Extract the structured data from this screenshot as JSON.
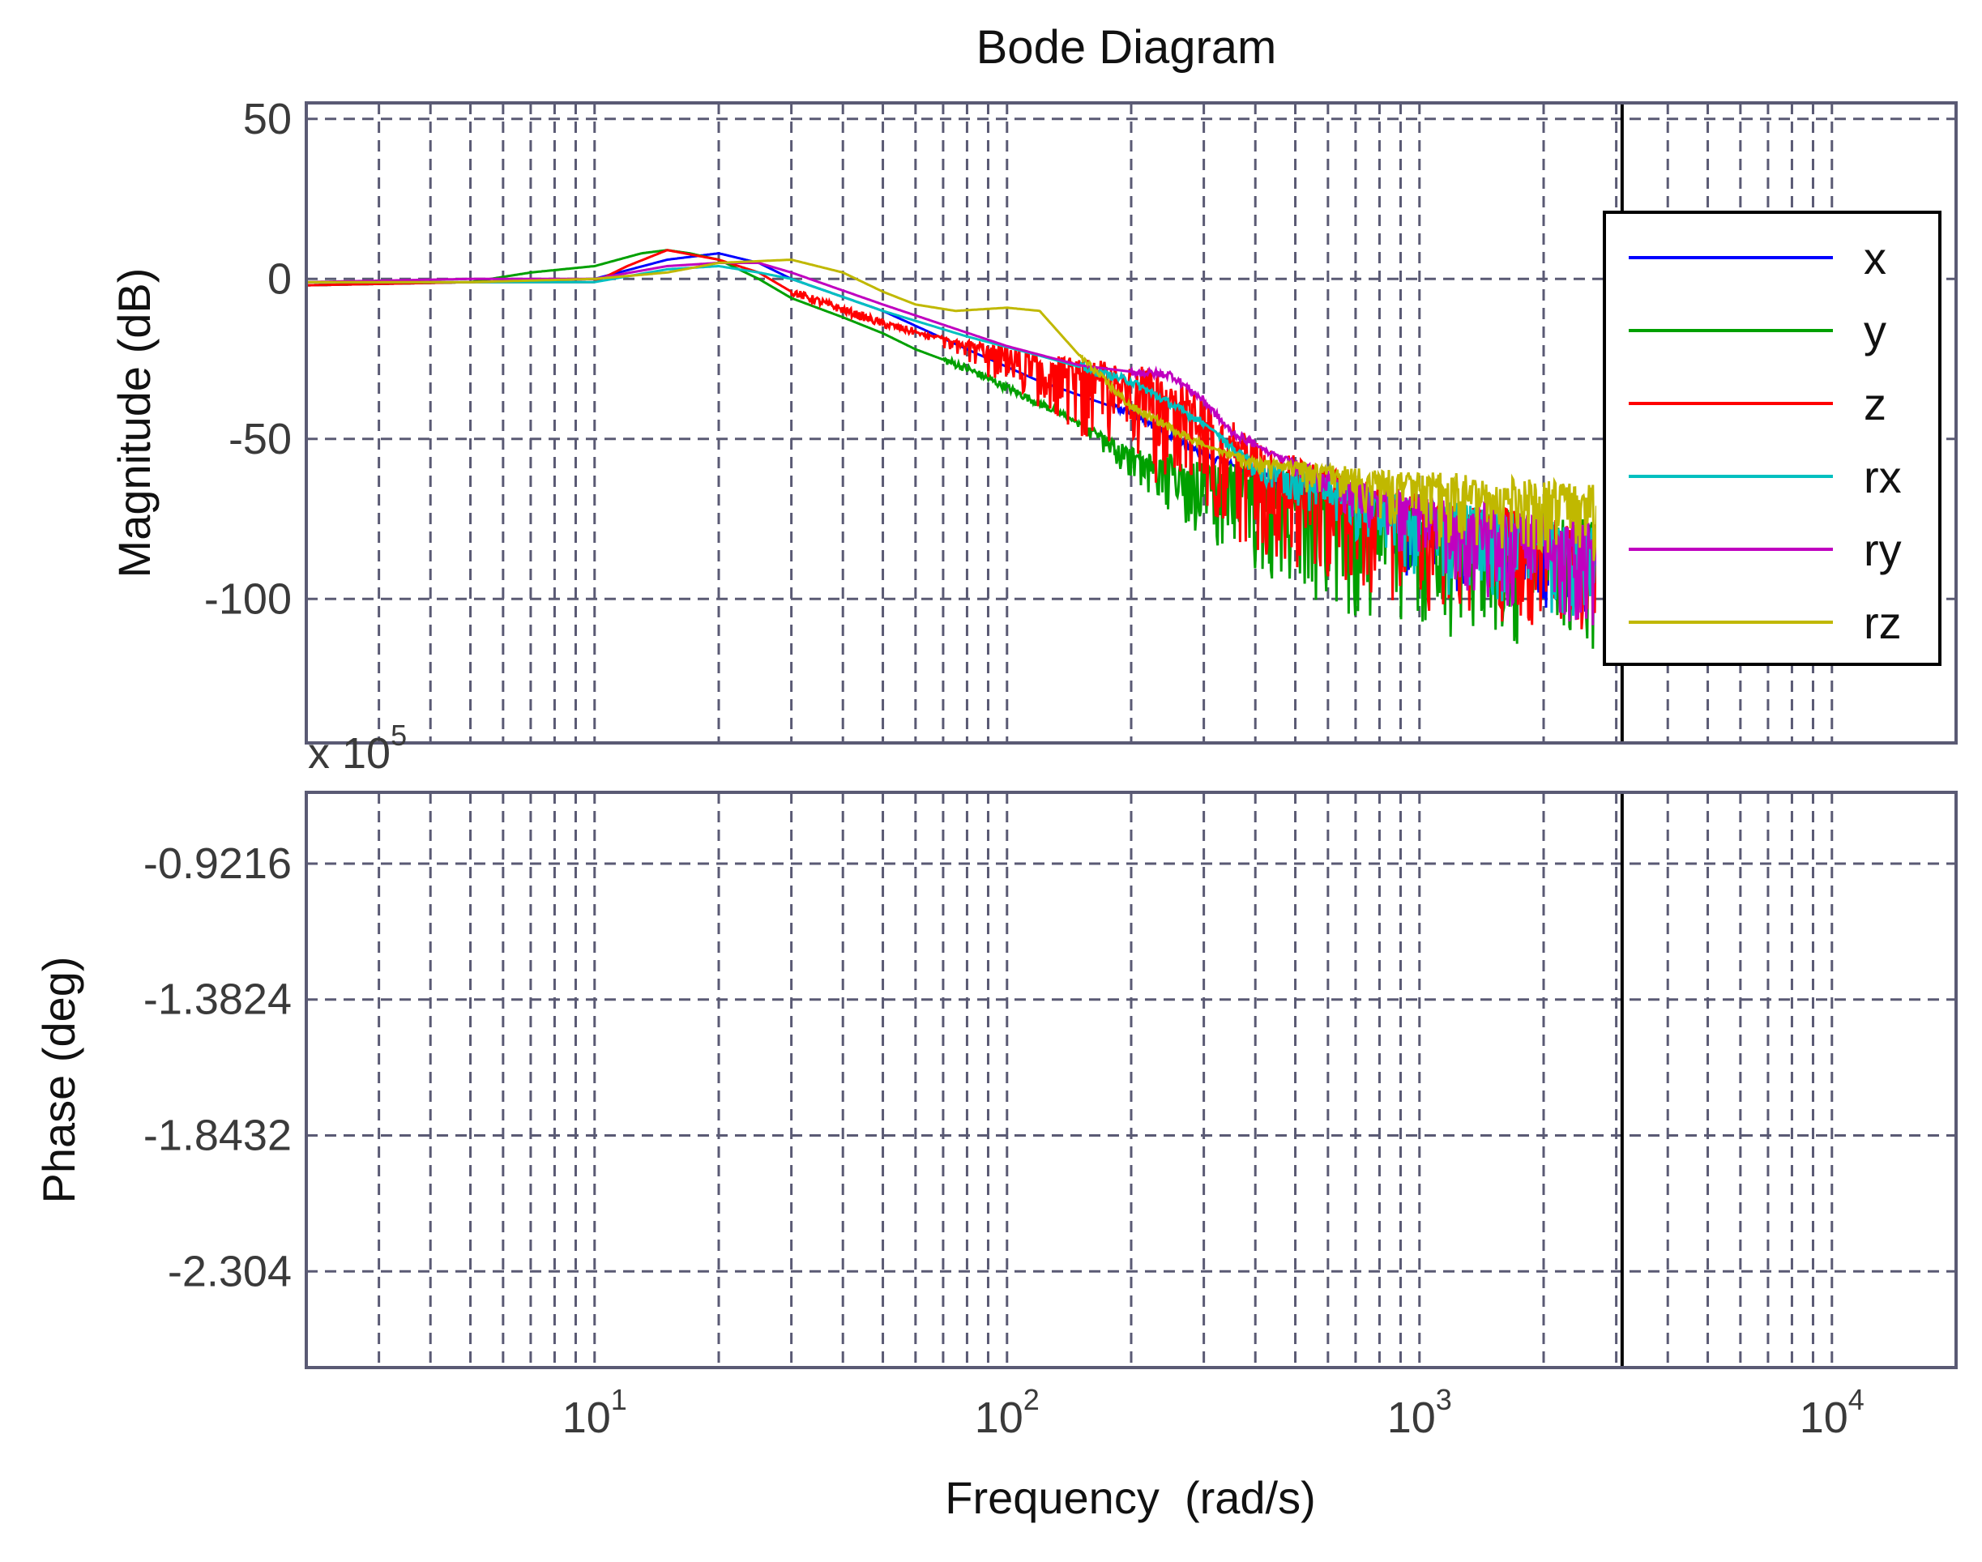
{
  "chart_data": {
    "type": "line",
    "title": "Bode Diagram",
    "xlabel": "Frequency  (rad/s)",
    "x_scale": "log",
    "xlim": [
      2,
      20000
    ],
    "x_ticks": [
      {
        "value": 10,
        "base": "10",
        "exp": "1"
      },
      {
        "value": 100,
        "base": "10",
        "exp": "2"
      },
      {
        "value": 1000,
        "base": "10",
        "exp": "3"
      },
      {
        "value": 10000,
        "base": "10",
        "exp": "4"
      }
    ],
    "vertical_marker": 3100,
    "grid": true,
    "legend": {
      "location": "right",
      "entries": [
        {
          "name": "x",
          "color": "#0000ff"
        },
        {
          "name": "y",
          "color": "#00a000"
        },
        {
          "name": "z",
          "color": "#ff0000"
        },
        {
          "name": "rx",
          "color": "#00c0c0"
        },
        {
          "name": "ry",
          "color": "#c000c0"
        },
        {
          "name": "rz",
          "color": "#c0b800"
        }
      ]
    },
    "magnitude": {
      "ylabel": "Magnitude (dB)",
      "ylim": [
        -145,
        55
      ],
      "y_ticks": [
        "50",
        "0",
        "-50",
        "-100"
      ],
      "y_tick_values": [
        50,
        0,
        -50,
        -100
      ],
      "series": [
        {
          "name": "x",
          "color": "#0000ff",
          "points": [
            [
              2,
              -2
            ],
            [
              5,
              -1
            ],
            [
              10,
              0
            ],
            [
              15,
              6
            ],
            [
              20,
              8
            ],
            [
              25,
              5
            ],
            [
              30,
              0
            ],
            [
              50,
              -10
            ],
            [
              80,
              -22
            ],
            [
              120,
              -32
            ],
            [
              200,
              -42
            ],
            [
              300,
              -55
            ],
            [
              500,
              -65
            ],
            [
              1000,
              -80
            ],
            [
              3000,
              -88
            ]
          ],
          "noise_from": 350,
          "noise_amp": 16
        },
        {
          "name": "y",
          "color": "#00a000",
          "points": [
            [
              2,
              -2
            ],
            [
              5,
              -1
            ],
            [
              7,
              2
            ],
            [
              10,
              4
            ],
            [
              13,
              8
            ],
            [
              15,
              9
            ],
            [
              17,
              8
            ],
            [
              20,
              6
            ],
            [
              25,
              0
            ],
            [
              30,
              -6
            ],
            [
              40,
              -12
            ],
            [
              50,
              -17
            ],
            [
              60,
              -22
            ],
            [
              80,
              -28
            ],
            [
              100,
              -34
            ],
            [
              150,
              -45
            ],
            [
              200,
              -55
            ],
            [
              300,
              -62
            ],
            [
              500,
              -68
            ],
            [
              1000,
              -78
            ],
            [
              3000,
              -85
            ]
          ],
          "noise_from": 140,
          "noise_amp": 26
        },
        {
          "name": "z",
          "color": "#ff0000",
          "points": [
            [
              2,
              -2
            ],
            [
              5,
              -1
            ],
            [
              10,
              -1
            ],
            [
              12,
              4
            ],
            [
              15,
              9
            ],
            [
              20,
              6
            ],
            [
              25,
              2
            ],
            [
              30,
              -4
            ],
            [
              50,
              -14
            ],
            [
              100,
              -24
            ],
            [
              150,
              -30
            ],
            [
              200,
              -33
            ],
            [
              250,
              -38
            ],
            [
              300,
              -45
            ],
            [
              400,
              -58
            ],
            [
              700,
              -70
            ],
            [
              1000,
              -75
            ],
            [
              3000,
              -85
            ]
          ],
          "noise_from": 60,
          "noise_amp": 22
        },
        {
          "name": "rx",
          "color": "#00c0c0",
          "points": [
            [
              2,
              -1
            ],
            [
              5,
              -1
            ],
            [
              10,
              -1
            ],
            [
              15,
              3
            ],
            [
              20,
              4
            ],
            [
              25,
              2
            ],
            [
              30,
              0
            ],
            [
              50,
              -10
            ],
            [
              80,
              -18
            ],
            [
              120,
              -24
            ],
            [
              200,
              -32
            ],
            [
              300,
              -45
            ],
            [
              400,
              -58
            ],
            [
              700,
              -68
            ],
            [
              1000,
              -74
            ],
            [
              3000,
              -85
            ]
          ],
          "noise_from": 300,
          "noise_amp": 18
        },
        {
          "name": "ry",
          "color": "#c000c0",
          "points": [
            [
              2,
              -1
            ],
            [
              5,
              0
            ],
            [
              10,
              0
            ],
            [
              15,
              4
            ],
            [
              20,
              5
            ],
            [
              25,
              5
            ],
            [
              30,
              2
            ],
            [
              50,
              -8
            ],
            [
              100,
              -21
            ],
            [
              150,
              -27
            ],
            [
              200,
              -29
            ],
            [
              250,
              -30
            ],
            [
              300,
              -38
            ],
            [
              350,
              -48
            ],
            [
              450,
              -55
            ],
            [
              700,
              -66
            ],
            [
              1000,
              -72
            ],
            [
              3000,
              -85
            ]
          ],
          "noise_from": 400,
          "noise_amp": 20
        },
        {
          "name": "rz",
          "color": "#c0b800",
          "points": [
            [
              2,
              -1
            ],
            [
              5,
              -1
            ],
            [
              10,
              0
            ],
            [
              15,
              2
            ],
            [
              20,
              5
            ],
            [
              30,
              6
            ],
            [
              40,
              2
            ],
            [
              50,
              -4
            ],
            [
              60,
              -8
            ],
            [
              75,
              -10
            ],
            [
              100,
              -9
            ],
            [
              120,
              -10
            ],
            [
              150,
              -24
            ],
            [
              200,
              -40
            ],
            [
              300,
              -52
            ],
            [
              400,
              -57
            ],
            [
              700,
              -62
            ],
            [
              1000,
              -65
            ],
            [
              2000,
              -68
            ],
            [
              3000,
              -70
            ]
          ],
          "noise_from": 300,
          "noise_amp": 15
        }
      ]
    },
    "phase": {
      "ylabel": "Phase (deg)",
      "ylim": [
        -2.63,
        -0.68
      ],
      "multiplier": "x 10",
      "multiplier_exp": "5",
      "y_ticks": [
        "-0.9216",
        "-1.3824",
        "-1.8432",
        "-2.304"
      ],
      "y_tick_values": [
        -0.9216,
        -1.3824,
        -1.8432,
        -2.304
      ],
      "series": []
    }
  }
}
